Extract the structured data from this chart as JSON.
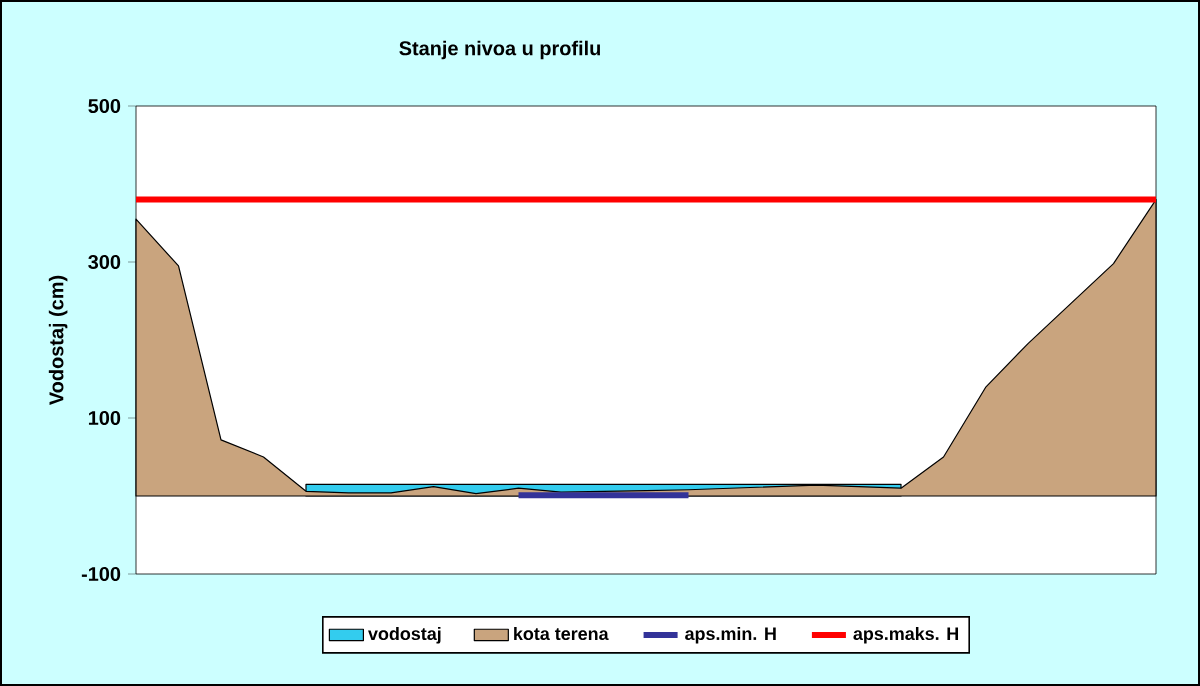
{
  "chart_data": {
    "type": "area",
    "title": "Stanje nivoa u profilu",
    "ylabel": "Vodostaj (cm)",
    "categories": [
      null,
      null,
      null,
      null,
      null,
      null,
      null,
      null,
      null,
      null,
      null,
      null,
      null,
      null,
      null,
      null,
      null,
      null,
      null,
      null,
      null,
      null,
      null,
      null,
      null
    ],
    "series": [
      {
        "name": "vodostaj",
        "color": "#33ccee",
        "values": [
          null,
          null,
          null,
          null,
          15,
          15,
          15,
          15,
          15,
          15,
          15,
          15,
          15,
          15,
          15,
          15,
          15,
          15,
          15,
          null,
          null,
          null,
          null,
          null,
          null
        ]
      },
      {
        "name": "kota terena",
        "color": "#c9a47e",
        "values": [
          355,
          295,
          72,
          50,
          6,
          4,
          4,
          12,
          3,
          10,
          5,
          6,
          7,
          8,
          10,
          12,
          14,
          12,
          10,
          50,
          140,
          196,
          247,
          298,
          380
        ]
      },
      {
        "name": "aps.min. H",
        "type": "line",
        "color": "#333399",
        "values": [
          null,
          null,
          null,
          null,
          null,
          null,
          null,
          null,
          null,
          1,
          1,
          1,
          1,
          1,
          null,
          null,
          null,
          null,
          null,
          null,
          null,
          null,
          null,
          null,
          null
        ]
      },
      {
        "name": "aps.maks. H",
        "type": "line",
        "color": "#ff0000",
        "values": [
          380,
          380,
          380,
          380,
          380,
          380,
          380,
          380,
          380,
          380,
          380,
          380,
          380,
          380,
          380,
          380,
          380,
          380,
          380,
          380,
          380,
          380,
          380,
          380,
          380
        ]
      }
    ],
    "ylim": [
      -100,
      500
    ],
    "yticks": [
      -100,
      100,
      300,
      500
    ],
    "legend": "bottom"
  }
}
